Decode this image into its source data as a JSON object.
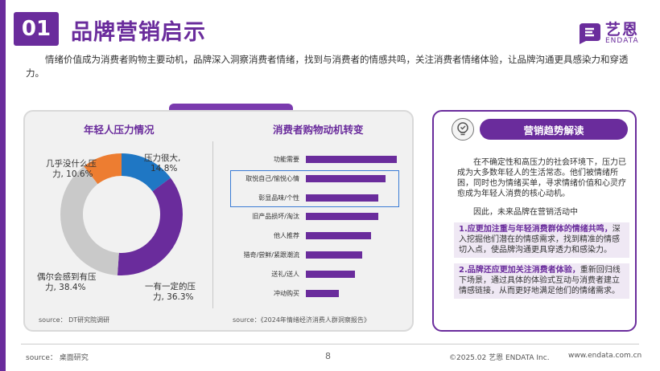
{
  "header": {
    "number": "01",
    "title": "品牌营销启示",
    "logo_cn": "艺恩",
    "logo_en": "ENDATA"
  },
  "intro": "情绪价值成为消费者购物主要动机，品牌深入洞察消费者情绪，找到与消费者的情感共鸣，关注消费者情绪体验，让品牌沟通更具感染力和穿透力。",
  "left_chart": {
    "title": "年轻人压力情况",
    "labels": [
      {
        "line1": "压力很大,",
        "line2": "14.8%"
      },
      {
        "line1": "一有一定的压",
        "line2": "力, 36.3%"
      },
      {
        "line1": "偶尔会感到有压",
        "line2": "力, 38.4%"
      },
      {
        "line1": "几乎没什么压",
        "line2": "力, 10.6%"
      }
    ],
    "source": "source： DT研究院调研"
  },
  "right_chart": {
    "title": "消费者购物动机转变",
    "source": "source：《2024年情绪经济消费人群洞察报告》"
  },
  "chart_data": [
    {
      "type": "pie",
      "title": "年轻人压力情况",
      "categories": [
        "压力很大",
        "有一定的压力",
        "偶尔会感到有压力",
        "几乎没什么压力"
      ],
      "values": [
        14.8,
        36.3,
        38.4,
        10.6
      ],
      "colors": [
        "#1f77c4",
        "#6a2c9c",
        "#c9c9c9",
        "#ed7d31"
      ]
    },
    {
      "type": "bar",
      "title": "消费者购物动机转变",
      "categories": [
        "功能需要",
        "取悦自己/愉悦心情",
        "彰显品味/个性",
        "旧产品损坏/淘汰",
        "他人推荐",
        "猎奇/尝鲜/紧跟潮流",
        "送礼/送人",
        "冲动购买"
      ],
      "values": [
        100,
        88,
        80,
        80,
        72,
        62,
        54,
        36
      ],
      "highlighted": [
        "取悦自己/愉悦心情",
        "彰显品味/个性"
      ]
    }
  ],
  "trend": {
    "title": "营销趋势解读",
    "para1": "在不确定性和高压力的社会环境下，压力已成为大多数年轻人的生活常态。他们被情绪所困，同时也为情绪买单，寻求情绪价值和心灵疗愈成为年轻人消费的核心动机。",
    "para2": "因此，未来品牌在营销活动中",
    "point1_bold": "1.应更加注重与年轻消费群体的情绪共鸣，",
    "point1_text": "深入挖掘他们潜在的情感需求，找到精准的情感切入点，使品牌沟通更具穿透力和感染力。",
    "point2_bold": "2.品牌还应更加关注消费者体验，",
    "point2_text": "重新回归线下场景，通过具体的体验式互动与消费者建立情感链接，从而更好地满足他们的情绪需求。"
  },
  "footer": {
    "source": "source： 桌面研究",
    "page": "8",
    "copyright": "©2025.02  艺恩  ENDATA Inc.",
    "website": "www.endata.com.cn"
  }
}
